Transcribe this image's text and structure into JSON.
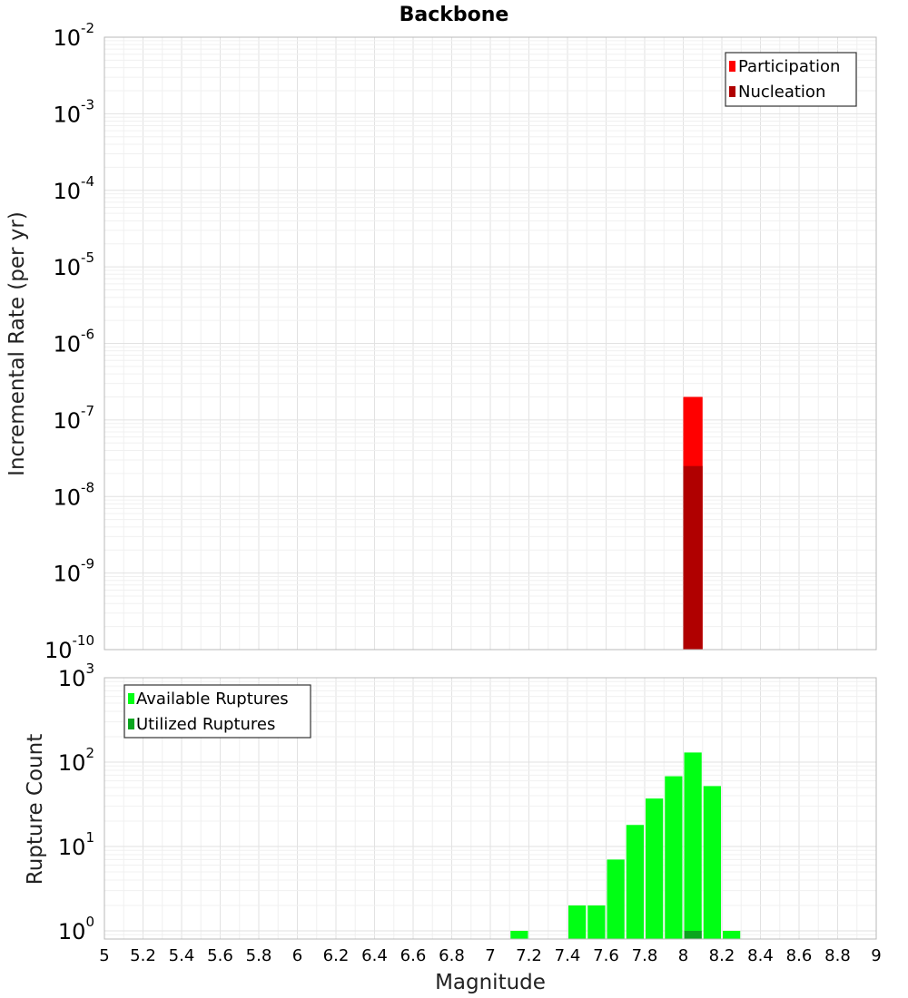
{
  "chart_data": [
    {
      "type": "bar",
      "title": "Backbone",
      "ylabel": "Incremental Rate (per yr)",
      "xlabel": "",
      "xlim": [
        5,
        9
      ],
      "ylim": [
        1e-10,
        0.01
      ],
      "yscale": "log",
      "y_ticks": [
        {
          "base": "10",
          "exp": "-2",
          "value": 0.01
        },
        {
          "base": "10",
          "exp": "-3",
          "value": 0.001
        },
        {
          "base": "10",
          "exp": "-4",
          "value": 0.0001
        },
        {
          "base": "10",
          "exp": "-5",
          "value": 1e-05
        },
        {
          "base": "10",
          "exp": "-6",
          "value": 1e-06
        },
        {
          "base": "10",
          "exp": "-7",
          "value": 1e-07
        },
        {
          "base": "10",
          "exp": "-8",
          "value": 1e-08
        },
        {
          "base": "10",
          "exp": "-9",
          "value": 1e-09
        },
        {
          "base": "10",
          "exp": "-10",
          "value": 1e-10
        }
      ],
      "grid": true,
      "legend_position": "top-right",
      "series": [
        {
          "name": "Participation",
          "color": "#ff0000",
          "x": [
            8.05
          ],
          "values": [
            2e-07
          ]
        },
        {
          "name": "Nucleation",
          "color": "#b00000",
          "x": [
            8.05
          ],
          "values": [
            2.5e-08
          ]
        }
      ]
    },
    {
      "type": "bar",
      "title": "",
      "ylabel": "Rupture Count",
      "xlabel": "Magnitude",
      "xlim": [
        5,
        9
      ],
      "ylim": [
        0.8,
        1000
      ],
      "yscale": "log",
      "y_ticks": [
        {
          "base": "10",
          "exp": "3",
          "value": 1000
        },
        {
          "base": "10",
          "exp": "2",
          "value": 100
        },
        {
          "base": "10",
          "exp": "1",
          "value": 10
        },
        {
          "base": "10",
          "exp": "0",
          "value": 1
        }
      ],
      "x_ticks": [
        "5",
        "5.2",
        "5.4",
        "5.6",
        "5.8",
        "6",
        "6.2",
        "6.4",
        "6.6",
        "6.8",
        "7",
        "7.2",
        "7.4",
        "7.6",
        "7.8",
        "8",
        "8.2",
        "8.4",
        "8.6",
        "8.8",
        "9"
      ],
      "grid": true,
      "legend_position": "top-left",
      "series": [
        {
          "name": "Available Ruptures",
          "color": "#00ff14",
          "x": [
            7.15,
            7.45,
            7.55,
            7.65,
            7.75,
            7.85,
            7.95,
            8.05,
            8.15,
            8.25
          ],
          "values": [
            1,
            2,
            2,
            7,
            18,
            37,
            68,
            130,
            52,
            1
          ]
        },
        {
          "name": "Utilized Ruptures",
          "color": "#0aa51e",
          "x": [
            8.05
          ],
          "values": [
            1
          ]
        }
      ]
    }
  ]
}
